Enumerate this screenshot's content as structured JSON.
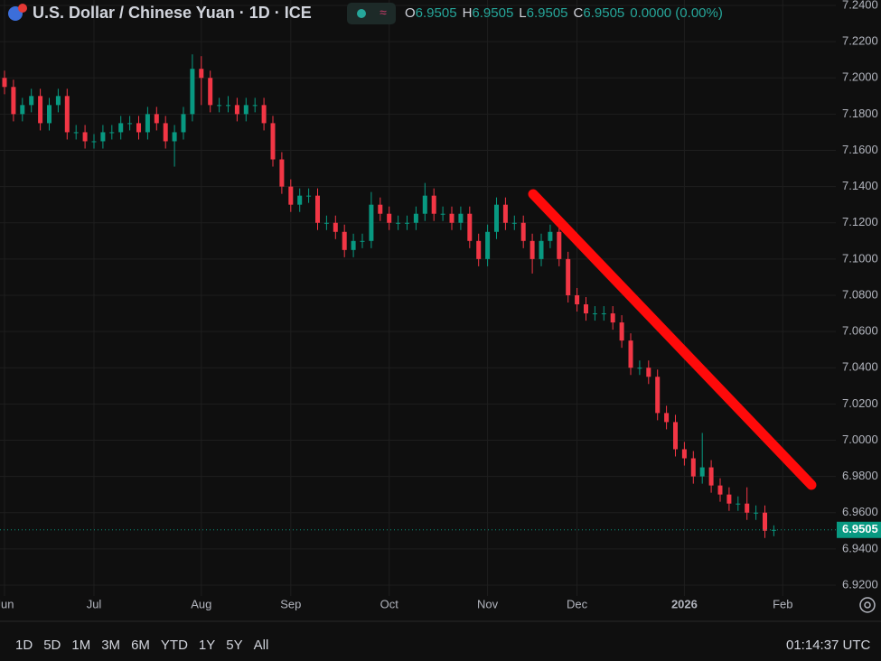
{
  "header": {
    "title": "U.S. Dollar / Chinese Yuan · 1D · ICE",
    "ohlc": [
      "O",
      "6.9505",
      "H",
      "6.9505",
      "L",
      "6.9505",
      "C",
      "6.9505"
    ],
    "change": "0.0000 (0.00%)"
  },
  "chart_data": {
    "type": "candlestick",
    "up_color": "#089981",
    "down_color": "#f23645",
    "grid": true,
    "categories": [
      "Jun",
      null,
      null,
      null,
      null,
      null,
      null,
      null,
      null,
      null,
      "Jul",
      null,
      null,
      null,
      null,
      null,
      null,
      null,
      null,
      null,
      null,
      null,
      "Aug",
      null,
      null,
      null,
      null,
      null,
      null,
      null,
      null,
      null,
      "Sep",
      null,
      null,
      null,
      null,
      null,
      null,
      null,
      null,
      null,
      null,
      "Oct",
      null,
      null,
      null,
      null,
      null,
      null,
      null,
      null,
      null,
      null,
      "Nov",
      null,
      null,
      null,
      null,
      null,
      null,
      null,
      null,
      null,
      "Dec",
      null,
      null,
      null,
      null,
      null,
      null,
      null,
      null,
      null,
      null,
      null,
      "2026",
      null,
      null,
      null,
      null,
      null,
      null,
      null,
      null,
      null,
      null,
      "Feb"
    ],
    "open": [
      7.2,
      7.195,
      7.18,
      7.185,
      7.19,
      7.175,
      7.185,
      7.19,
      7.17,
      7.17,
      7.165,
      7.165,
      7.17,
      7.17,
      7.175,
      7.175,
      7.17,
      7.18,
      7.175,
      7.165,
      7.17,
      7.18,
      7.205,
      7.2,
      7.185,
      7.185,
      7.185,
      7.18,
      7.185,
      7.185,
      7.175,
      7.155,
      7.14,
      7.13,
      7.135,
      7.135,
      7.12,
      7.12,
      7.115,
      7.105,
      7.11,
      7.11,
      7.13,
      7.125,
      7.12,
      7.12,
      7.12,
      7.125,
      7.135,
      7.125,
      7.125,
      7.12,
      7.125,
      7.11,
      7.1,
      7.115,
      7.13,
      7.12,
      7.12,
      7.11,
      7.1,
      7.11,
      7.115,
      7.1,
      7.08,
      7.075,
      7.07,
      7.07,
      7.07,
      7.065,
      7.055,
      7.04,
      7.04,
      7.035,
      7.015,
      7.01,
      6.995,
      6.99,
      6.98,
      6.985,
      6.975,
      6.97,
      6.965,
      6.965,
      6.96,
      6.96,
      6.95,
      null
    ],
    "high": [
      7.204,
      7.199,
      7.189,
      7.194,
      7.194,
      7.189,
      7.194,
      7.194,
      7.174,
      7.174,
      7.169,
      7.174,
      7.174,
      7.179,
      7.179,
      7.179,
      7.184,
      7.184,
      7.179,
      7.174,
      7.184,
      7.213,
      7.212,
      7.204,
      7.189,
      7.19,
      7.189,
      7.189,
      7.189,
      7.189,
      7.179,
      7.159,
      7.144,
      7.139,
      7.139,
      7.139,
      7.124,
      7.124,
      7.119,
      7.114,
      7.114,
      7.137,
      7.134,
      7.129,
      7.124,
      7.124,
      7.129,
      7.142,
      7.139,
      7.129,
      7.129,
      7.129,
      7.129,
      7.114,
      7.119,
      7.134,
      7.134,
      7.124,
      7.124,
      7.114,
      7.114,
      7.119,
      7.119,
      7.104,
      7.084,
      7.079,
      7.074,
      7.074,
      7.074,
      7.069,
      7.059,
      7.044,
      7.044,
      7.039,
      7.019,
      7.014,
      6.999,
      6.994,
      7.004,
      6.989,
      6.979,
      6.974,
      6.969,
      6.974,
      6.964,
      6.964,
      6.953,
      null
    ],
    "low": [
      7.191,
      7.176,
      7.176,
      7.181,
      7.171,
      7.171,
      7.181,
      7.166,
      7.166,
      7.161,
      7.161,
      7.161,
      7.166,
      7.166,
      7.171,
      7.166,
      7.166,
      7.171,
      7.161,
      7.151,
      7.166,
      7.176,
      7.185,
      7.181,
      7.181,
      7.181,
      7.176,
      7.176,
      7.181,
      7.171,
      7.151,
      7.136,
      7.126,
      7.126,
      7.131,
      7.116,
      7.116,
      7.111,
      7.101,
      7.101,
      7.106,
      7.106,
      7.121,
      7.116,
      7.116,
      7.116,
      7.116,
      7.121,
      7.121,
      7.121,
      7.116,
      7.116,
      7.106,
      7.096,
      7.096,
      7.111,
      7.116,
      7.116,
      7.106,
      7.092,
      7.096,
      7.106,
      7.096,
      7.076,
      7.071,
      7.066,
      7.066,
      7.066,
      7.061,
      7.051,
      7.036,
      7.036,
      7.031,
      7.011,
      7.006,
      6.991,
      6.986,
      6.976,
      6.976,
      6.971,
      6.966,
      6.961,
      6.961,
      6.956,
      6.956,
      6.946,
      6.947,
      null
    ],
    "close": [
      7.195,
      7.18,
      7.185,
      7.19,
      7.175,
      7.185,
      7.19,
      7.17,
      7.17,
      7.165,
      7.165,
      7.17,
      7.17,
      7.175,
      7.175,
      7.17,
      7.18,
      7.175,
      7.165,
      7.17,
      7.18,
      7.205,
      7.2,
      7.185,
      7.185,
      7.185,
      7.18,
      7.185,
      7.185,
      7.175,
      7.155,
      7.14,
      7.13,
      7.135,
      7.135,
      7.12,
      7.12,
      7.115,
      7.105,
      7.11,
      7.11,
      7.13,
      7.125,
      7.12,
      7.12,
      7.12,
      7.125,
      7.135,
      7.125,
      7.125,
      7.12,
      7.125,
      7.11,
      7.1,
      7.115,
      7.13,
      7.12,
      7.12,
      7.11,
      7.1,
      7.11,
      7.115,
      7.1,
      7.08,
      7.075,
      7.07,
      7.07,
      7.07,
      7.065,
      7.055,
      7.04,
      7.04,
      7.035,
      7.015,
      7.01,
      6.995,
      6.99,
      6.98,
      6.985,
      6.975,
      6.97,
      6.965,
      6.965,
      6.96,
      6.96,
      6.95,
      6.9505,
      null
    ],
    "ylim": [
      6.914,
      7.243
    ],
    "yticks": [
      {
        "value": 6.92,
        "label": "6.9200"
      },
      {
        "value": 6.94,
        "label": "6.9400"
      },
      {
        "value": 6.96,
        "label": "6.9600"
      },
      {
        "value": 6.98,
        "label": "6.9800"
      },
      {
        "value": 7.0,
        "label": "7.0000"
      },
      {
        "value": 7.02,
        "label": "7.0200"
      },
      {
        "value": 7.04,
        "label": "7.0400"
      },
      {
        "value": 7.06,
        "label": "7.0600"
      },
      {
        "value": 7.08,
        "label": "7.0800"
      },
      {
        "value": 7.1,
        "label": "7.1000"
      },
      {
        "value": 7.12,
        "label": "7.1200"
      },
      {
        "value": 7.14,
        "label": "7.1400"
      },
      {
        "value": 7.16,
        "label": "7.1600"
      },
      {
        "value": 7.18,
        "label": "7.1800"
      },
      {
        "value": 7.2,
        "label": "7.2000"
      },
      {
        "value": 7.22,
        "label": "7.2200"
      },
      {
        "value": 7.24,
        "label": "7.2400"
      }
    ],
    "last_price_label": "6.9505"
  },
  "toolbar": {
    "ranges": [
      "1D",
      "5D",
      "1M",
      "3M",
      "6M",
      "YTD",
      "1Y",
      "5Y",
      "All"
    ],
    "clock": "01:14:37 UTC"
  }
}
